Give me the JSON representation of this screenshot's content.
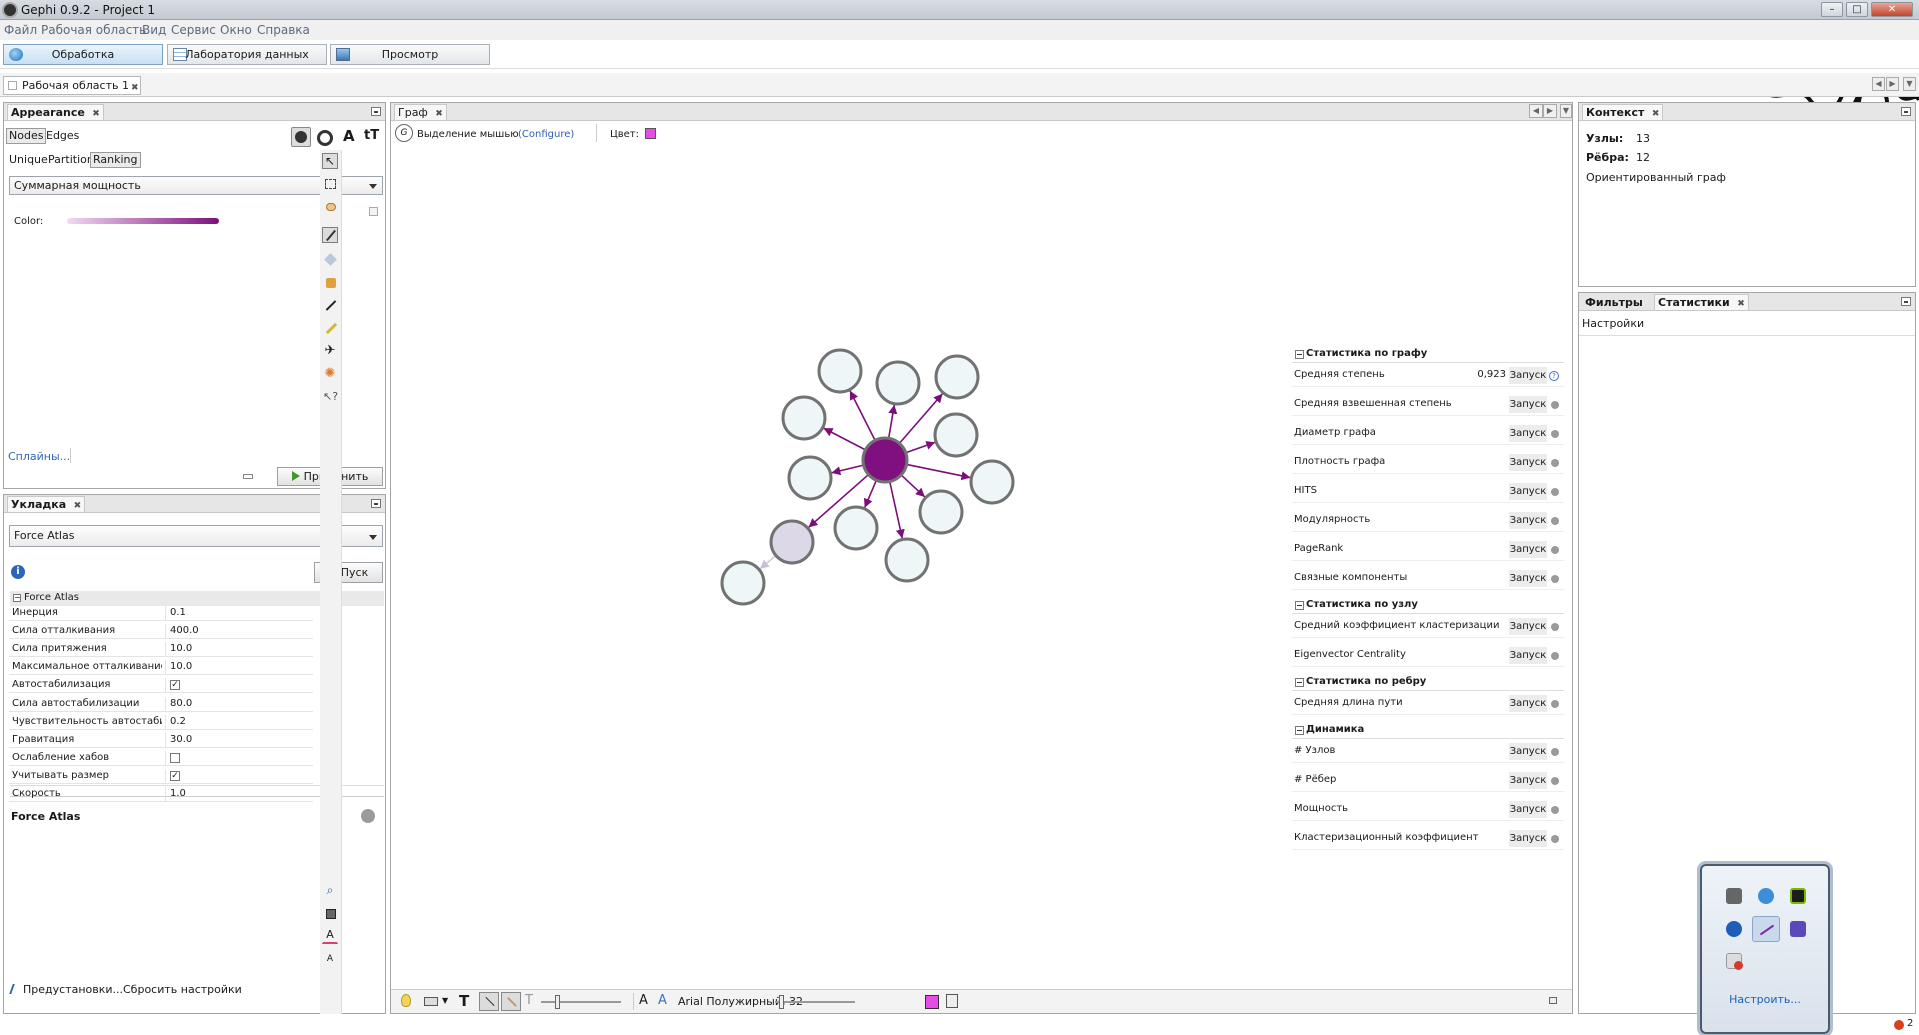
{
  "window": {
    "title": "Gephi 0.9.2 - Project 1",
    "controls": [
      "–",
      "□",
      "✕"
    ]
  },
  "menu": [
    "Файл",
    "Рабочая область",
    "Вид",
    "Сервис",
    "Окно",
    "Справка"
  ],
  "perspectives": {
    "overview": "Обработка",
    "data_lab": "Лаборатория данных",
    "preview": "Просмотр"
  },
  "workspace_tab": "Рабочая область 1",
  "appearance": {
    "title": "Appearance",
    "element_tabs": [
      "Nodes",
      "Edges"
    ],
    "mode_tabs": [
      "Unique",
      "Partition",
      "Ranking"
    ],
    "attribute": "Суммарная мощность",
    "color_label": "Color:",
    "splines_link": "Сплайны...",
    "apply_button": "Применить",
    "gradient_start": "#f2d9f2",
    "gradient_end": "#7d0f7d"
  },
  "layout": {
    "title": "Укладка",
    "algorithm": "Force Atlas",
    "run_button": "Пуск",
    "section": "Force Atlas",
    "properties": [
      {
        "name": "Инерция",
        "value": "0.1"
      },
      {
        "name": "Сила отталкивания",
        "value": "400.0"
      },
      {
        "name": "Сила притяжения",
        "value": "10.0"
      },
      {
        "name": "Максимальное отталкивание",
        "value": "10.0"
      },
      {
        "name": "Автостабилизация",
        "value": "✓"
      },
      {
        "name": "Сила автостабилизации",
        "value": "80.0"
      },
      {
        "name": "Чувствительность автостабилизац",
        "value": "0.2"
      },
      {
        "name": "Гравитация",
        "value": "30.0"
      },
      {
        "name": "Ослабление хабов",
        "value": ""
      },
      {
        "name": "Учитывать размер",
        "value": "✓"
      },
      {
        "name": "Скорость",
        "value": "1.0"
      }
    ],
    "footer_title": "Force Atlas",
    "presets_link": "Предустановки...",
    "reset_link": "Сбросить настройки"
  },
  "graph": {
    "tab": "Граф",
    "selection_label": "Выделение мышью",
    "configure_link": "(Configure)",
    "color_label": "Цвет:",
    "color_swatch": "#e64ce6",
    "font_label": "Arial Полужирный, 32",
    "edge_color": "#7b0e7b",
    "hub_color": "#800f80",
    "node_fill": "#eef6f8",
    "node_stroke": "#727272",
    "selected_node_fill": "#dcd8e8",
    "text_label_glyphs": [
      "T",
      "A",
      "A"
    ]
  },
  "context": {
    "title": "Контекст",
    "nodes_label": "Узлы:",
    "nodes_value": "13",
    "edges_label": "Рёбра:",
    "edges_value": "12",
    "graph_type": "Ориентированный граф"
  },
  "statistics": {
    "tabs": [
      "Фильтры",
      "Статистики"
    ],
    "settings": "Настройки",
    "run_label": "Запуск",
    "sections": [
      {
        "title": "Статистика по графу",
        "items": [
          {
            "name": "Средняя степень",
            "value": "0,923"
          },
          {
            "name": "Средняя взвешенная степень",
            "value": ""
          },
          {
            "name": "Диаметр графа",
            "value": ""
          },
          {
            "name": "Плотность графа",
            "value": ""
          },
          {
            "name": "HITS",
            "value": ""
          },
          {
            "name": "Модулярность",
            "value": ""
          },
          {
            "name": "PageRank",
            "value": ""
          },
          {
            "name": "Связные компоненты",
            "value": ""
          }
        ]
      },
      {
        "title": "Статистика по узлу",
        "items": [
          {
            "name": "Средний коэффициент кластеризации",
            "value": ""
          },
          {
            "name": "Eigenvector Centrality",
            "value": ""
          }
        ]
      },
      {
        "title": "Статистика по ребру",
        "items": [
          {
            "name": "Средняя длина пути",
            "value": ""
          }
        ]
      },
      {
        "title": "Динамика",
        "items": [
          {
            "name": "# Узлов",
            "value": ""
          },
          {
            "name": "# Рёбер",
            "value": ""
          },
          {
            "name": "Мощность",
            "value": ""
          },
          {
            "name": "Кластеризационный коэффициент",
            "value": ""
          }
        ]
      }
    ]
  },
  "tray": {
    "customize": "Настроить...",
    "badge": "2"
  }
}
